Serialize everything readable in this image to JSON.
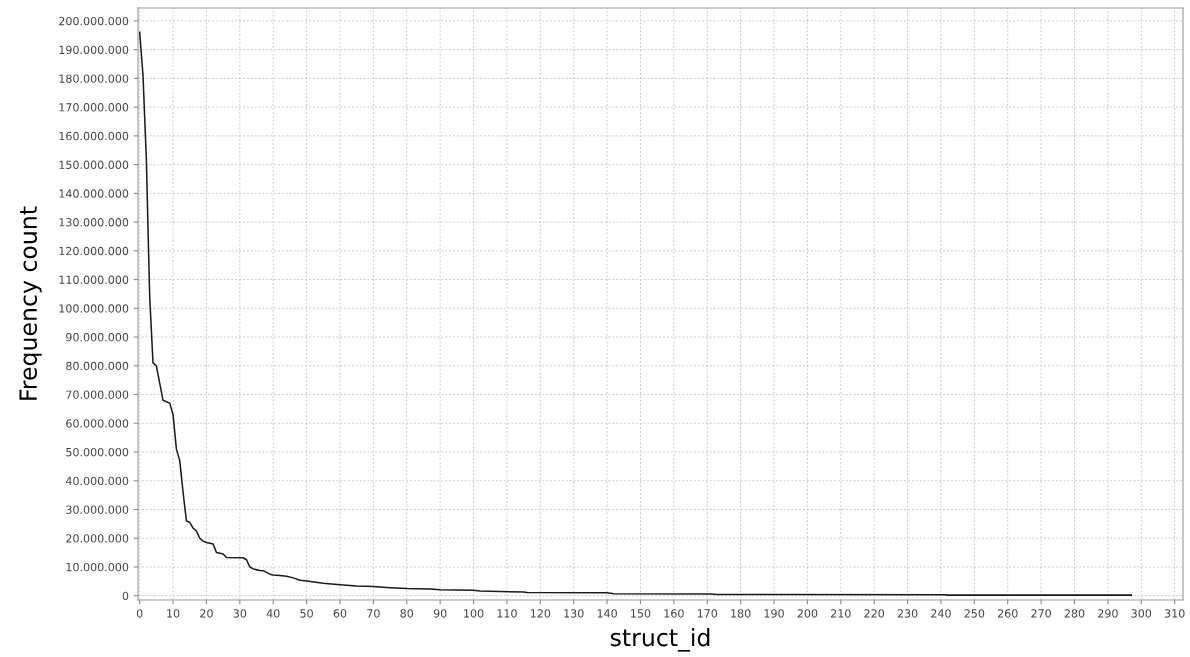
{
  "chart_data": {
    "type": "line",
    "xlabel": "struct_id",
    "ylabel": "Frequency count",
    "x": [
      0,
      1,
      2,
      3,
      4,
      5,
      6,
      7,
      8,
      9,
      10,
      11,
      12,
      13,
      14,
      15,
      16,
      17,
      18,
      19,
      20,
      22,
      23,
      25,
      26,
      31,
      32,
      33,
      34,
      36,
      37,
      39,
      40,
      42,
      44,
      46,
      48,
      50,
      55,
      60,
      65,
      70,
      75,
      80,
      87,
      90,
      100,
      102,
      115,
      116,
      140,
      142,
      171,
      173,
      241,
      242,
      297
    ],
    "series": [
      {
        "color": "#1a1a1a",
        "values": [
          196000000,
          181000000,
          152000000,
          104000000,
          81000000,
          80000000,
          74000000,
          68000000,
          67500000,
          67000000,
          63000000,
          51000000,
          47000000,
          36000000,
          26000000,
          25500000,
          23500000,
          22500000,
          20000000,
          19000000,
          18500000,
          18000000,
          15000000,
          14500000,
          13300000,
          13200000,
          12500000,
          10000000,
          9300000,
          8800000,
          8700000,
          7500000,
          7200000,
          7000000,
          6800000,
          6200000,
          5400000,
          5100000,
          4300000,
          3800000,
          3400000,
          3200000,
          2800000,
          2500000,
          2300000,
          2100000,
          1900000,
          1600000,
          1300000,
          1100000,
          1000000,
          700000,
          600000,
          400000,
          300000,
          200000,
          200000
        ]
      }
    ],
    "xlim": [
      -0.5,
      312.5
    ],
    "ylim": [
      -1500000,
      204500000
    ],
    "xticks": [
      0,
      10,
      20,
      30,
      40,
      50,
      60,
      70,
      80,
      90,
      100,
      110,
      120,
      130,
      140,
      150,
      160,
      170,
      180,
      190,
      200,
      210,
      220,
      230,
      240,
      250,
      260,
      270,
      280,
      290,
      300,
      310
    ],
    "yticks": [
      0,
      {
        "value": 10000000,
        "label": "10.000.000"
      },
      {
        "value": 20000000,
        "label": "20.000.000"
      },
      {
        "value": 30000000,
        "label": "30.000.000"
      },
      {
        "value": 40000000,
        "label": "40.000.000"
      },
      {
        "value": 50000000,
        "label": "50.000.000"
      },
      {
        "value": 60000000,
        "label": "60.000.000"
      },
      {
        "value": 70000000,
        "label": "70.000.000"
      },
      {
        "value": 80000000,
        "label": "80.000.000"
      },
      {
        "value": 90000000,
        "label": "90.000.000"
      },
      {
        "value": 100000000,
        "label": "100.000.000"
      },
      {
        "value": 110000000,
        "label": "110.000.000"
      },
      {
        "value": 120000000,
        "label": "120.000.000"
      },
      {
        "value": 130000000,
        "label": "130.000.000"
      },
      {
        "value": 140000000,
        "label": "140.000.000"
      },
      {
        "value": 150000000,
        "label": "150.000.000"
      },
      {
        "value": 160000000,
        "label": "160.000.000"
      },
      {
        "value": 170000000,
        "label": "170.000.000"
      },
      {
        "value": 180000000,
        "label": "180.000.000"
      },
      {
        "value": 190000000,
        "label": "190.000.000"
      },
      {
        "value": 200000000,
        "label": "200.000.000"
      }
    ],
    "grid": true,
    "line_style": "solid",
    "marker": "none"
  }
}
